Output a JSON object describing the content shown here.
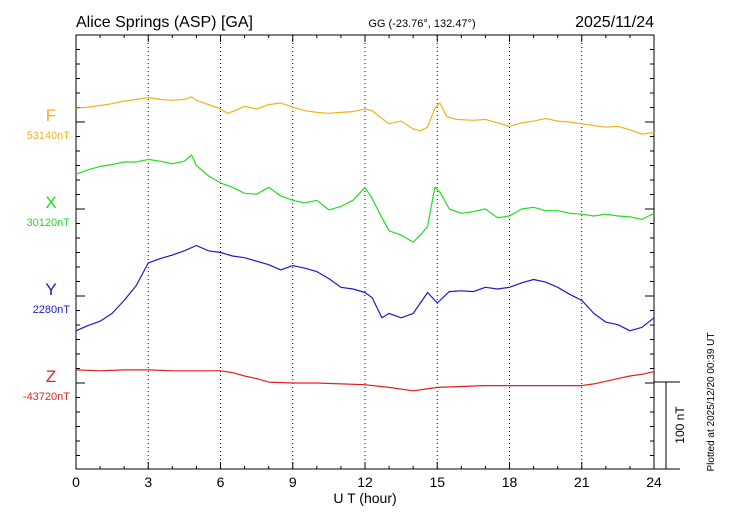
{
  "header": {
    "station": "Alice Springs (ASP)  [GA]",
    "coords": "GG (-23.76°, 132.47°)",
    "date": "2025/11/24"
  },
  "footer": {
    "plotted": "Plotted at 2025/12/20 00:39 UT"
  },
  "colors": {
    "F": "#f0b21e",
    "X": "#22dd22",
    "Y": "#1a1acc",
    "Z": "#e02020"
  },
  "chart_data": {
    "type": "line",
    "xlabel": "U T (hour)",
    "xlim": [
      0,
      24
    ],
    "x_ticks": [
      "0",
      "3",
      "6",
      "9",
      "12",
      "15",
      "18",
      "21",
      "24"
    ],
    "scale_label": "100 nT",
    "scale_nT": 100,
    "series": [
      {
        "name": "F",
        "baseline_label": "53140nT",
        "baseline_nT": 53140,
        "x": [
          0,
          0.5,
          1,
          1.5,
          2,
          2.5,
          3,
          3.5,
          4,
          4.5,
          4.8,
          5,
          5.5,
          6,
          6.3,
          6.6,
          7,
          7.5,
          8,
          8.5,
          9,
          9.5,
          10,
          10.5,
          11,
          11.5,
          12,
          12.3,
          12.7,
          13,
          13.5,
          14,
          14.3,
          14.6,
          14.9,
          15.1,
          15.4,
          15.8,
          16.5,
          17,
          17.5,
          18,
          18.5,
          19,
          19.5,
          20,
          20.5,
          21,
          21.5,
          22,
          22.5,
          23,
          23.5,
          24
        ],
        "values": [
          16,
          17,
          19,
          21,
          24,
          26,
          28,
          26,
          25,
          26,
          29,
          25,
          20,
          15,
          10,
          13,
          18,
          15,
          20,
          22,
          17,
          13,
          11,
          10,
          11,
          12,
          15,
          13,
          4,
          -2,
          1,
          -8,
          -10,
          -6,
          16,
          22,
          6,
          3,
          2,
          3,
          -1,
          -5,
          -1,
          1,
          4,
          1,
          0,
          -2,
          -4,
          -6,
          -5,
          -9,
          -14,
          -12
        ]
      },
      {
        "name": "X",
        "baseline_label": "30120nT",
        "baseline_nT": 30120,
        "x": [
          0,
          0.5,
          1,
          1.5,
          2,
          2.5,
          3,
          3.5,
          4,
          4.5,
          4.8,
          5,
          5.5,
          6,
          6.5,
          7,
          7.5,
          8,
          8.5,
          9,
          9.5,
          10,
          10.5,
          11,
          11.5,
          12,
          12.3,
          12.7,
          13,
          13.5,
          14,
          14.3,
          14.6,
          14.9,
          15.1,
          15.5,
          16,
          16.5,
          17,
          17.5,
          18,
          18.5,
          19,
          19.5,
          20,
          20.5,
          21,
          21.5,
          22,
          22.5,
          23,
          23.5,
          24
        ],
        "values": [
          40,
          45,
          49,
          51,
          54,
          54,
          57,
          55,
          52,
          55,
          62,
          50,
          38,
          30,
          25,
          18,
          17,
          25,
          15,
          10,
          7,
          10,
          -1,
          3,
          10,
          25,
          12,
          -10,
          -25,
          -30,
          -38,
          -30,
          -20,
          25,
          20,
          0,
          -5,
          -3,
          0,
          -10,
          -8,
          0,
          2,
          -2,
          -2,
          -5,
          -6,
          -8,
          -6,
          -8,
          -9,
          -12,
          -5
        ]
      },
      {
        "name": "Y",
        "baseline_label": "2280nT",
        "baseline_nT": 2280,
        "x": [
          0,
          0.5,
          1,
          1.5,
          2,
          2.5,
          3,
          3.5,
          4,
          4.5,
          5,
          5.5,
          6,
          6.5,
          7,
          7.5,
          8,
          8.5,
          9,
          9.5,
          10,
          10.5,
          11,
          11.5,
          12,
          12.3,
          12.7,
          13,
          13.5,
          14,
          14.3,
          14.6,
          15,
          15.5,
          16,
          16.5,
          17,
          17.5,
          18,
          18.5,
          19,
          19.5,
          20,
          20.5,
          21,
          21.5,
          22,
          22.5,
          23,
          23.5,
          24
        ],
        "values": [
          -40,
          -34,
          -29,
          -20,
          -5,
          12,
          38,
          43,
          47,
          52,
          58,
          52,
          50,
          46,
          44,
          40,
          36,
          30,
          35,
          32,
          28,
          20,
          10,
          8,
          4,
          -2,
          -25,
          -20,
          -25,
          -20,
          -8,
          4,
          -8,
          5,
          6,
          5,
          10,
          8,
          10,
          15,
          19,
          16,
          10,
          2,
          -5,
          -20,
          -30,
          -33,
          -40,
          -36,
          -25
        ]
      },
      {
        "name": "Z",
        "baseline_label": "-43720nT",
        "baseline_nT": -43720,
        "x": [
          0,
          1,
          2,
          3,
          4,
          5,
          6,
          6.5,
          7,
          7.5,
          8,
          9,
          10,
          11,
          12,
          13,
          14,
          14.5,
          15,
          16,
          17,
          18,
          19,
          20,
          21,
          21.5,
          22,
          22.5,
          23,
          23.5,
          24
        ],
        "values": [
          15,
          14,
          15,
          15,
          14,
          14,
          14,
          12,
          8,
          5,
          1,
          0,
          0,
          -1,
          -2,
          -5,
          -9,
          -7,
          -5,
          -4,
          -3,
          -3,
          -3,
          -3,
          -3,
          -1,
          2,
          5,
          8,
          10,
          13
        ]
      }
    ]
  }
}
